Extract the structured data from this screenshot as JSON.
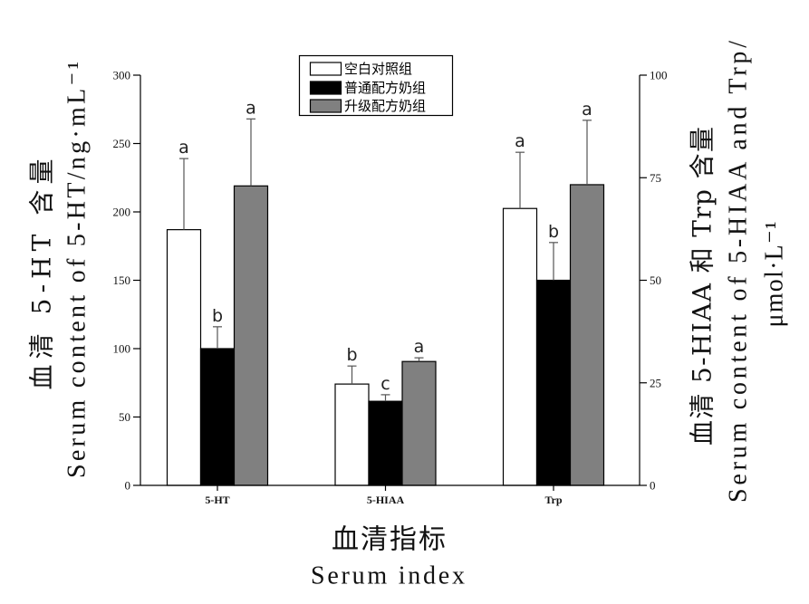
{
  "chart_data": {
    "type": "bar",
    "categories": [
      "5-HT",
      "5-HIAA",
      "Trp"
    ],
    "categories_on_right_axis": [
      1,
      2
    ],
    "series": [
      {
        "name": "空白对照组",
        "color": "#ffffff",
        "values": [
          187,
          24.7,
          67.5
        ],
        "errors": [
          52,
          4.4,
          13.7
        ],
        "letters": [
          "a",
          "b",
          "a"
        ]
      },
      {
        "name": "普通配方奶组",
        "color": "#000000",
        "values": [
          100,
          20.5,
          50.0
        ],
        "errors": [
          16,
          1.6,
          9.2
        ],
        "letters": [
          "b",
          "c",
          "b"
        ]
      },
      {
        "name": "升级配方奶组",
        "color": "#808080",
        "values": [
          219,
          30.2,
          73.3
        ],
        "errors": [
          49,
          0.9,
          15.7
        ],
        "letters": [
          "a",
          "a",
          "a"
        ]
      }
    ],
    "y_left": {
      "label_lines": [
        "血清 5-HT 含量",
        "Serum content of 5-HT/ng·mL⁻¹"
      ],
      "ylim": [
        0,
        300
      ],
      "ticks": [
        0,
        50,
        100,
        150,
        200,
        250,
        300
      ]
    },
    "y_right": {
      "label_lines": [
        "血清 5-HIAA 和 Trp 含量",
        "Serum content of 5-HIAA and Trp/",
        "μmol·L⁻¹"
      ],
      "ylim": [
        0,
        100
      ],
      "ticks": [
        0,
        25,
        50,
        75,
        100
      ]
    },
    "x_label_lines": [
      "血清指标",
      "Serum index"
    ],
    "legend_placement": "top-center",
    "grid": false
  }
}
